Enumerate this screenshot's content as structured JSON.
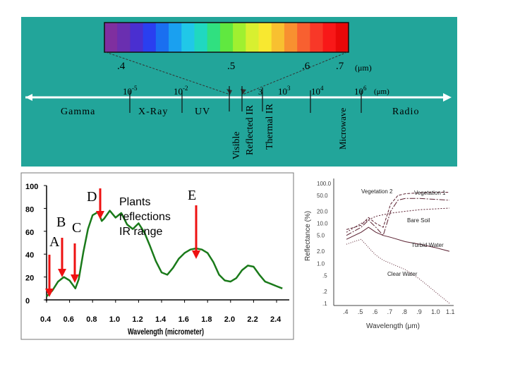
{
  "spectrum": {
    "visible_ticks": [
      ".4",
      ".5",
      ".6",
      ".7"
    ],
    "visible_unit": "(μm)",
    "exp_ticks": [
      {
        "base": "10",
        "exp": "-5"
      },
      {
        "base": "10",
        "exp": "-2"
      },
      {
        "base": "",
        "exp": "3"
      },
      {
        "base": "10",
        "exp": "3"
      },
      {
        "base": "10",
        "exp": "4"
      },
      {
        "base": "10",
        "exp": "6"
      }
    ],
    "exp_unit": "(μm)",
    "regions": [
      "Gamma",
      "X-Ray",
      "UV",
      "Radio"
    ],
    "vertical_labels": [
      "Visible",
      "Reflected IR",
      "Thermal IR",
      "Microwave"
    ],
    "colors": [
      "#7f2f9f",
      "#6a2fb0",
      "#4a2fd0",
      "#2a3ff0",
      "#1a6ff0",
      "#1aa0f0",
      "#20c8e8",
      "#20d8c0",
      "#30e080",
      "#60e840",
      "#a0f030",
      "#d8f030",
      "#f8e830",
      "#f8c030",
      "#f89030",
      "#f86030",
      "#f83828",
      "#f81818",
      "#e80808"
    ]
  },
  "chart_left": {
    "xlabel": "Wavelength (micrometer)",
    "yticks": [
      "100",
      "80",
      "60",
      "40",
      "20",
      "0"
    ],
    "xticks": [
      "0.4",
      "0.6",
      "0.8",
      "1.0",
      "1.2",
      "1.4",
      "1.6",
      "1.8",
      "2.0",
      "2.2",
      "2.4"
    ],
    "markers": [
      "A",
      "B",
      "C",
      "D",
      "E"
    ],
    "annotation": [
      "Plants",
      "reflections",
      "IR range"
    ],
    "arrow_color": "#ee1111"
  },
  "chart_right": {
    "ylabel": "Reflectance (%)",
    "xlabel": "Wavelength (μm)",
    "yticks": [
      "100.0",
      "50.0",
      "20.0",
      "10.0",
      "5.0",
      "2.0",
      "1.0",
      ".5",
      ".2",
      ".1"
    ],
    "xticks": [
      ".4",
      ".5",
      ".6",
      ".7",
      ".8",
      ".9",
      "1.0",
      "1.1"
    ],
    "series_labels": [
      "Vegetation 2",
      "Vegetation 1",
      "Bare Soil",
      "Turbid Water",
      "Clear Water"
    ]
  },
  "chart_data": [
    {
      "type": "line",
      "title": "",
      "xlabel": "Wavelength (micrometer)",
      "ylabel": "",
      "xlim": [
        0.4,
        2.5
      ],
      "ylim": [
        0,
        100
      ],
      "series": [
        {
          "name": "vegetation reflectance",
          "x": [
            0.4,
            0.45,
            0.5,
            0.55,
            0.6,
            0.65,
            0.68,
            0.72,
            0.76,
            0.8,
            0.85,
            0.88,
            0.9,
            0.95,
            1.0,
            1.05,
            1.1,
            1.15,
            1.2,
            1.25,
            1.3,
            1.35,
            1.4,
            1.45,
            1.5,
            1.55,
            1.6,
            1.65,
            1.7,
            1.75,
            1.8,
            1.85,
            1.9,
            1.95,
            2.0,
            2.05,
            2.1,
            2.15,
            2.2,
            2.25,
            2.3,
            2.35,
            2.4,
            2.45
          ],
          "y": [
            3,
            8,
            16,
            20,
            17,
            10,
            18,
            42,
            62,
            74,
            77,
            69,
            71,
            78,
            72,
            76,
            66,
            62,
            67,
            59,
            47,
            34,
            24,
            22,
            28,
            36,
            41,
            44,
            45,
            44,
            41,
            33,
            22,
            17,
            16,
            19,
            26,
            30,
            29,
            22,
            16,
            14,
            12,
            10
          ]
        }
      ]
    },
    {
      "type": "line",
      "title": "",
      "xlabel": "Wavelength (μm)",
      "ylabel": "Reflectance (%)",
      "xlim": [
        0.4,
        1.1
      ],
      "yscale": "log",
      "ylim": [
        0.1,
        100
      ],
      "series": [
        {
          "name": "Vegetation 2",
          "x": [
            0.4,
            0.5,
            0.55,
            0.6,
            0.65,
            0.7,
            0.75,
            0.8,
            0.9,
            1.0,
            1.1
          ],
          "y": [
            7,
            9,
            14,
            10,
            8,
            30,
            50,
            55,
            58,
            60,
            60
          ]
        },
        {
          "name": "Vegetation 1",
          "x": [
            0.4,
            0.5,
            0.55,
            0.6,
            0.65,
            0.7,
            0.75,
            0.8,
            0.9,
            1.0,
            1.1
          ],
          "y": [
            5,
            8,
            12,
            8,
            5,
            20,
            38,
            42,
            42,
            40,
            38
          ]
        },
        {
          "name": "Bare Soil",
          "x": [
            0.4,
            0.5,
            0.6,
            0.7,
            0.8,
            0.9,
            1.0,
            1.1
          ],
          "y": [
            6,
            10,
            15,
            18,
            20,
            22,
            23,
            24
          ]
        },
        {
          "name": "Turbid Water",
          "x": [
            0.4,
            0.5,
            0.55,
            0.6,
            0.65,
            0.7,
            0.8,
            0.9,
            1.0,
            1.1
          ],
          "y": [
            4,
            6,
            8,
            6,
            5,
            4.5,
            3.5,
            3,
            2.5,
            2
          ]
        },
        {
          "name": "Clear Water",
          "x": [
            0.4,
            0.45,
            0.5,
            0.55,
            0.6,
            0.65,
            0.7,
            0.8,
            0.9,
            1.0,
            1.1
          ],
          "y": [
            3,
            3.5,
            4,
            2.5,
            1.6,
            1.2,
            1.0,
            0.7,
            0.4,
            0.2,
            0.1
          ]
        }
      ]
    }
  ]
}
